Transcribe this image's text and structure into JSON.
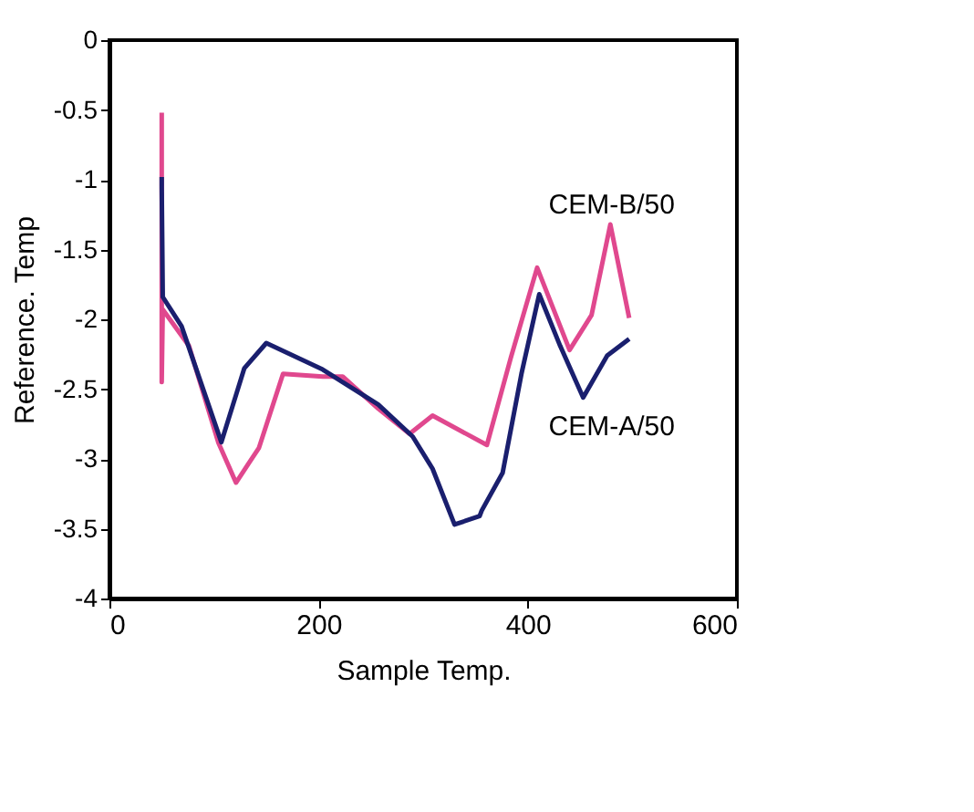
{
  "chart_data": {
    "type": "line",
    "xlabel": "Sample Temp.",
    "ylabel": "Reference. Temp",
    "xlim": [
      0,
      600
    ],
    "xticks": [
      0,
      200,
      400,
      600
    ],
    "ylim": [
      -4,
      0
    ],
    "yticks": [
      -4,
      -3.5,
      -3,
      -2.5,
      -2,
      -1.5,
      -1,
      -0.5,
      0
    ],
    "grid": false,
    "legend": false,
    "marker": "none",
    "line_style": "solid",
    "series": [
      {
        "name": "CEM-B/50",
        "color": "#e0488e",
        "x": [
          50,
          50,
          51,
          76,
          104,
          121,
          143,
          166,
          204,
          223,
          257,
          287,
          309,
          361,
          384,
          409,
          440,
          461,
          479,
          497
        ],
        "values": [
          -0.52,
          -2.45,
          -1.93,
          -2.19,
          -2.88,
          -3.17,
          -2.92,
          -2.39,
          -2.41,
          -2.41,
          -2.64,
          -2.82,
          -2.69,
          -2.9,
          -2.27,
          -1.63,
          -2.22,
          -1.97,
          -1.32,
          -1.99
        ]
      },
      {
        "name": "CEM-A/50",
        "color": "#1a1f6e",
        "x": [
          50,
          50,
          51,
          69,
          107,
          129,
          150,
          204,
          257,
          290,
          309,
          330,
          354,
          356,
          376,
          394,
          411,
          431,
          453,
          476,
          497
        ],
        "values": [
          -0.98,
          -1.05,
          -1.84,
          -2.05,
          -2.88,
          -2.35,
          -2.17,
          -2.36,
          -2.61,
          -2.84,
          -3.07,
          -3.47,
          -3.41,
          -3.37,
          -3.1,
          -2.39,
          -1.82,
          -2.19,
          -2.56,
          -2.26,
          -2.14
        ]
      }
    ]
  }
}
